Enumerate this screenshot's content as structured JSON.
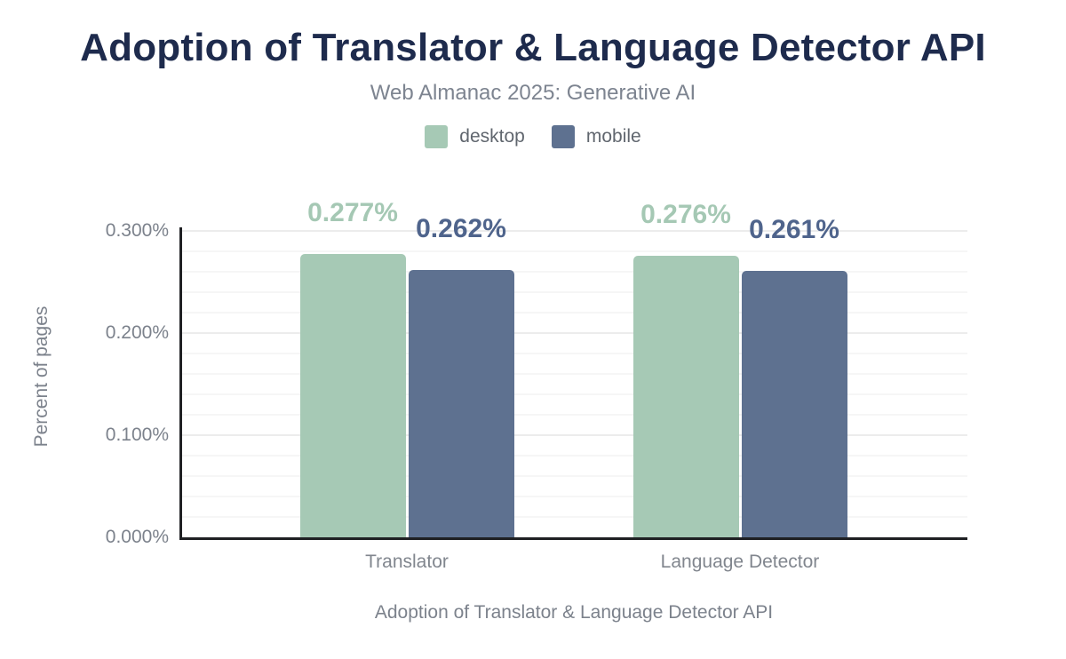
{
  "chart_data": {
    "type": "bar",
    "title": "Adoption of Translator & Language Detector API",
    "subtitle": "Web Almanac 2025: Generative AI",
    "xlabel": "Adoption of Translator & Language Detector API",
    "ylabel": "Percent of pages",
    "categories": [
      "Translator",
      "Language Detector"
    ],
    "series": [
      {
        "name": "desktop",
        "color": "#a6c9b5",
        "label_color": "#a5c8b4",
        "values": [
          0.277,
          0.276
        ],
        "value_labels": [
          "0.277%",
          "0.276%"
        ]
      },
      {
        "name": "mobile",
        "color": "#5e7190",
        "label_color": "#4f648c",
        "values": [
          0.262,
          0.261
        ],
        "value_labels": [
          "0.262%",
          "0.261%"
        ]
      }
    ],
    "ylim": [
      0,
      0.3
    ],
    "yticks": [
      {
        "value": 0.0,
        "label": "0.000%"
      },
      {
        "value": 0.1,
        "label": "0.100%"
      },
      {
        "value": 0.2,
        "label": "0.200%"
      },
      {
        "value": 0.3,
        "label": "0.300%"
      }
    ],
    "grid": {
      "visible": true,
      "minor_step": 0.02,
      "major_on": [
        0.1,
        0.2,
        0.3
      ]
    },
    "legend_position": "top",
    "background": "#ffffff"
  }
}
